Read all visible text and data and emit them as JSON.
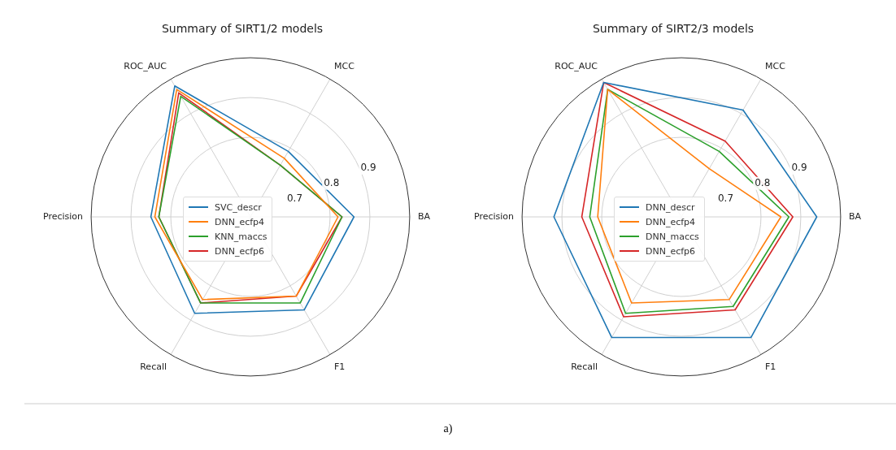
{
  "chart_data": [
    {
      "type": "radar",
      "title": "Summary of SIRT1/2 models",
      "categories": [
        "ROC_AUC",
        "MCC",
        "BA",
        "F1",
        "Recall",
        "Precision"
      ],
      "ylim": [
        0.6,
        1.0
      ],
      "yticks": [
        0.7,
        0.8,
        0.9
      ],
      "grid": true,
      "legend": "center",
      "annotations": [
        "a)"
      ],
      "series": [
        {
          "name": "SVC_descr",
          "color": "#1f77b4",
          "values": [
            0.98,
            0.79,
            0.86,
            0.87,
            0.88,
            0.85
          ]
        },
        {
          "name": "DNN_ecfp4",
          "color": "#ff7f0e",
          "values": [
            0.97,
            0.77,
            0.82,
            0.83,
            0.84,
            0.84
          ]
        },
        {
          "name": "KNN_maccs",
          "color": "#2ca02c",
          "values": [
            0.95,
            0.75,
            0.83,
            0.85,
            0.85,
            0.83
          ]
        },
        {
          "name": "DNN_ecfp6",
          "color": "#d62728",
          "values": [
            0.96,
            0.75,
            0.83,
            0.83,
            0.85,
            0.83
          ]
        }
      ]
    },
    {
      "type": "radar",
      "title": "Summary of SIRT2/3 models",
      "categories": [
        "ROC_AUC",
        "MCC",
        "BA",
        "F1",
        "Recall",
        "Precision"
      ],
      "ylim": [
        0.6,
        1.0
      ],
      "yticks": [
        0.7,
        0.8,
        0.9
      ],
      "grid": true,
      "legend": "center",
      "series": [
        {
          "name": "DNN_descr",
          "color": "#1f77b4",
          "values": [
            0.99,
            0.91,
            0.94,
            0.95,
            0.95,
            0.92
          ]
        },
        {
          "name": "DNN_ecfp4",
          "color": "#ff7f0e",
          "values": [
            0.97,
            0.74,
            0.85,
            0.84,
            0.85,
            0.81
          ]
        },
        {
          "name": "DNN_maccs",
          "color": "#2ca02c",
          "values": [
            0.97,
            0.79,
            0.87,
            0.86,
            0.88,
            0.83
          ]
        },
        {
          "name": "DNN_ecfp6",
          "color": "#d62728",
          "values": [
            0.99,
            0.82,
            0.88,
            0.87,
            0.89,
            0.85
          ]
        }
      ]
    }
  ]
}
